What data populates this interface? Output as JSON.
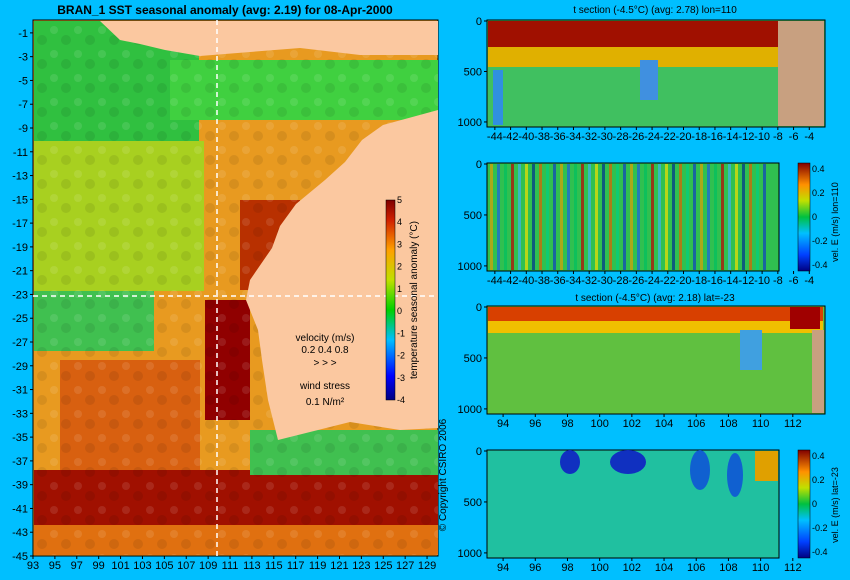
{
  "chart_data": [
    {
      "type": "heatmap",
      "title": "BRAN_1 SST seasonal anomaly (avg: 2.19) for 08-Apr-2000",
      "x_ticks": [
        "93",
        "95",
        "97",
        "99",
        "101",
        "103",
        "105",
        "107",
        "109",
        "111",
        "113",
        "115",
        "117",
        "119",
        "121",
        "123",
        "125",
        "127",
        "129"
      ],
      "y_ticks": [
        "-1",
        "-3",
        "-5",
        "-7",
        "-9",
        "-11",
        "-13",
        "-15",
        "-17",
        "-19",
        "-21",
        "-23",
        "-25",
        "-27",
        "-29",
        "-31",
        "-33",
        "-35",
        "-37",
        "-39",
        "-41",
        "-43",
        "-45"
      ],
      "xlim": [
        93,
        130
      ],
      "ylim": [
        -45,
        0
      ],
      "colorbar": {
        "label": "temperature seasonal anomaly (°C)",
        "ticks": [
          "5",
          "4",
          "3",
          "2",
          "1",
          "0",
          "-1",
          "-2",
          "-3",
          "-4"
        ],
        "range": [
          -4,
          5
        ]
      },
      "velocity_legend": {
        "title": "velocity (m/s)",
        "scale": "0.2 0.4 0.8"
      },
      "wind_legend": {
        "title": "wind stress",
        "value": "0.1 N/m²"
      },
      "crosshair": {
        "lon": 110,
        "lat": -23
      },
      "copyright": "© Copyright CSIRO 2006"
    },
    {
      "type": "heatmap",
      "title": "t section (-4.5°C) (avg: 2.78) lon=110",
      "x_ticks": [
        "-44",
        "-42",
        "-40",
        "-38",
        "-36",
        "-34",
        "-32",
        "-30",
        "-28",
        "-26",
        "-24",
        "-22",
        "-20",
        "-18",
        "-16",
        "-14",
        "-12",
        "-10",
        "-8",
        "-6",
        "-4"
      ],
      "y_ticks": [
        "0",
        "500",
        "1000"
      ],
      "xlim": [
        -45,
        -2
      ],
      "ylim": [
        1050,
        0
      ]
    },
    {
      "type": "heatmap",
      "title": "",
      "x_ticks": [
        "-44",
        "-42",
        "-40",
        "-38",
        "-36",
        "-34",
        "-32",
        "-30",
        "-28",
        "-26",
        "-24",
        "-22",
        "-20",
        "-18",
        "-16",
        "-14",
        "-12",
        "-10",
        "-8",
        "-6",
        "-4"
      ],
      "y_ticks": [
        "0",
        "500",
        "1000"
      ],
      "xlim": [
        -45,
        -2
      ],
      "ylim": [
        1050,
        0
      ],
      "colorbar": {
        "label": "vel. E (m/s) lon=110",
        "ticks": [
          "0.4",
          "0.2",
          "0",
          "-0.2",
          "-0.4"
        ],
        "range": [
          -0.45,
          0.45
        ]
      }
    },
    {
      "type": "heatmap",
      "title": "t section (-4.5°C) (avg: 2.18) lat=-23",
      "x_ticks": [
        "94",
        "96",
        "98",
        "100",
        "102",
        "104",
        "106",
        "108",
        "110",
        "112"
      ],
      "y_ticks": [
        "0",
        "500",
        "1000"
      ],
      "xlim": [
        93,
        114
      ],
      "ylim": [
        1050,
        0
      ]
    },
    {
      "type": "heatmap",
      "title": "",
      "x_ticks": [
        "94",
        "96",
        "98",
        "100",
        "102",
        "104",
        "106",
        "108",
        "110",
        "112"
      ],
      "y_ticks": [
        "0",
        "500",
        "1000"
      ],
      "xlim": [
        93,
        114
      ],
      "ylim": [
        1050,
        0
      ],
      "colorbar": {
        "label": "vel. E (m/s) lat=-23",
        "ticks": [
          "0.4",
          "0.2",
          "0",
          "-0.2",
          "-0.4"
        ],
        "range": [
          -0.45,
          0.45
        ]
      }
    }
  ]
}
